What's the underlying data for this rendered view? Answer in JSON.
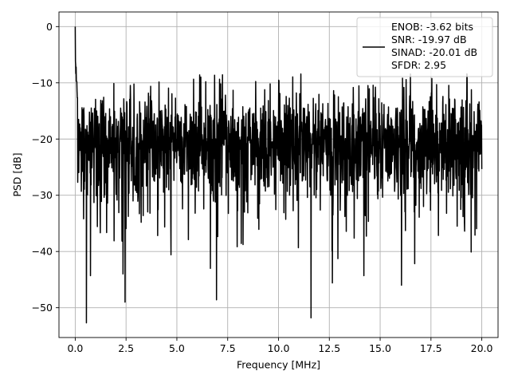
{
  "chart_data": {
    "type": "line",
    "xlabel": "Frequency [MHz]",
    "ylabel": "PSD [dB]",
    "xlim": [
      -0.8,
      20.8
    ],
    "ylim": [
      -55.3,
      2.6
    ],
    "xticks": [
      0.0,
      2.5,
      5.0,
      7.5,
      10.0,
      12.5,
      15.0,
      17.5,
      20.0
    ],
    "xtick_labels": [
      "0.0",
      "2.5",
      "5.0",
      "7.5",
      "10.0",
      "12.5",
      "15.0",
      "17.5",
      "20.0"
    ],
    "yticks": [
      0,
      -10,
      -20,
      -30,
      -40,
      -50
    ],
    "ytick_labels": [
      "0",
      "−10",
      "−20",
      "−30",
      "−40",
      "−50"
    ],
    "grid": true,
    "legend": {
      "placement": "top-right",
      "entries": [
        "ENOB: -3.62 bits",
        "SNR: -19.97 dB",
        "SINAD: -20.01 dB",
        "SFDR: 2.95"
      ]
    },
    "series": [
      {
        "color": "#000000",
        "peak": {
          "x": 0.0,
          "y": 0.0
        },
        "notable_dips": [
          {
            "x": 0.55,
            "y": -52.7
          },
          {
            "x": 11.6,
            "y": -51.8
          },
          {
            "x": 2.45,
            "y": -49.0
          },
          {
            "x": 6.95,
            "y": -48.6
          },
          {
            "x": 16.05,
            "y": -46.0
          },
          {
            "x": 0.75,
            "y": -44.3
          },
          {
            "x": 12.65,
            "y": -45.6
          },
          {
            "x": 2.35,
            "y": -44.0
          },
          {
            "x": 14.2,
            "y": -44.3
          },
          {
            "x": 6.65,
            "y": -43.0
          }
        ],
        "envelope": {
          "upper": [
            -12,
            -8.4
          ],
          "lower": [
            -37,
            -31
          ]
        }
      }
    ]
  }
}
